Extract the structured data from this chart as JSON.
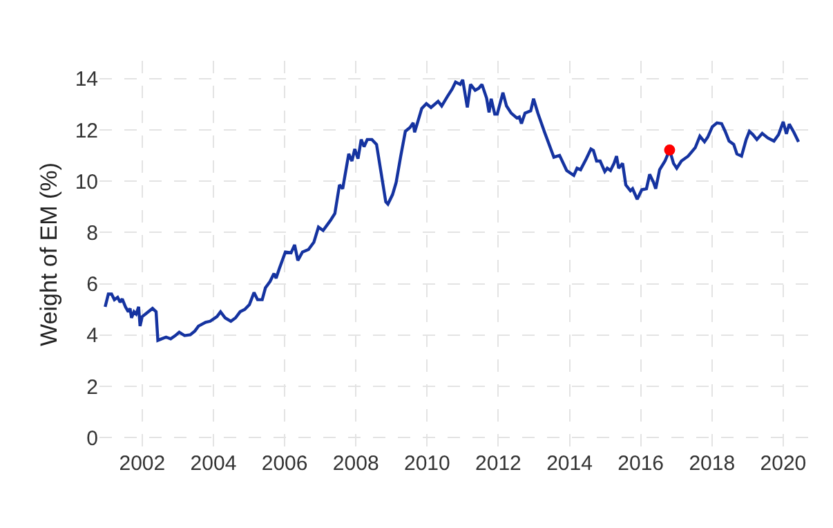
{
  "chart_data": {
    "type": "line",
    "ylabel": "Weight of EM (%)",
    "xlim": [
      2000.8,
      2020.7
    ],
    "xticks": [
      2002,
      2004,
      2006,
      2008,
      2010,
      2012,
      2014,
      2016,
      2018,
      2020
    ],
    "ylim": [
      -0.4,
      14.7
    ],
    "yticks": [
      0,
      2,
      4,
      6,
      8,
      10,
      12,
      14
    ],
    "grid": true,
    "series": [
      {
        "color": "#1533a0",
        "marker": "none",
        "line_style": "solid",
        "x": [
          2000.96,
          2001.05,
          2001.14,
          2001.22,
          2001.31,
          2001.38,
          2001.44,
          2001.53,
          2001.61,
          2001.66,
          2001.7,
          2001.77,
          2001.83,
          2001.9,
          2001.94,
          2002.0,
          2002.09,
          2002.29,
          2002.39,
          2002.44,
          2002.54,
          2002.67,
          2002.8,
          2002.93,
          2003.04,
          2003.19,
          2003.35,
          2003.48,
          2003.58,
          2003.78,
          2003.91,
          2004.1,
          2004.2,
          2004.33,
          2004.49,
          2004.62,
          2004.75,
          2004.88,
          2005.01,
          2005.14,
          2005.24,
          2005.37,
          2005.46,
          2005.59,
          2005.7,
          2005.76,
          2005.85,
          2006.02,
          2006.18,
          2006.28,
          2006.37,
          2006.5,
          2006.67,
          2006.82,
          2006.95,
          2007.08,
          2007.28,
          2007.41,
          2007.54,
          2007.63,
          2007.8,
          2007.89,
          2007.97,
          2008.06,
          2008.15,
          2008.23,
          2008.32,
          2008.45,
          2008.58,
          2008.71,
          2008.84,
          2008.9,
          2009.03,
          2009.13,
          2009.26,
          2009.39,
          2009.52,
          2009.61,
          2009.65,
          2009.78,
          2009.85,
          2009.98,
          2010.11,
          2010.31,
          2010.41,
          2010.57,
          2010.7,
          2010.8,
          2010.93,
          2011.0,
          2011.13,
          2011.22,
          2011.35,
          2011.45,
          2011.54,
          2011.67,
          2011.74,
          2011.8,
          2011.9,
          2011.97,
          2012.13,
          2012.23,
          2012.36,
          2012.52,
          2012.59,
          2012.65,
          2012.75,
          2012.91,
          2012.99,
          2013.11,
          2013.3,
          2013.56,
          2013.72,
          2013.92,
          2014.12,
          2014.21,
          2014.31,
          2014.47,
          2014.6,
          2014.67,
          2014.76,
          2014.86,
          2014.99,
          2015.06,
          2015.15,
          2015.25,
          2015.32,
          2015.38,
          2015.49,
          2015.58,
          2015.71,
          2015.77,
          2015.9,
          2016.03,
          2016.16,
          2016.25,
          2016.36,
          2016.42,
          2016.53,
          2016.68,
          2016.81,
          2016.92,
          2017.01,
          2017.14,
          2017.33,
          2017.53,
          2017.66,
          2017.79,
          2017.88,
          2018.01,
          2018.14,
          2018.27,
          2018.37,
          2018.48,
          2018.61,
          2018.7,
          2018.83,
          2018.96,
          2019.05,
          2019.15,
          2019.26,
          2019.41,
          2019.57,
          2019.74,
          2019.87,
          2020.0,
          2020.09,
          2020.17,
          2020.3,
          2020.43
        ],
        "values": [
          5.1,
          5.6,
          5.6,
          5.38,
          5.47,
          5.28,
          5.41,
          5.1,
          4.91,
          5.04,
          4.67,
          4.91,
          4.82,
          5.1,
          4.35,
          4.72,
          4.82,
          5.04,
          4.91,
          3.79,
          3.85,
          3.92,
          3.85,
          3.98,
          4.11,
          3.98,
          4.01,
          4.16,
          4.35,
          4.5,
          4.54,
          4.72,
          4.91,
          4.67,
          4.54,
          4.67,
          4.91,
          5.0,
          5.19,
          5.66,
          5.38,
          5.38,
          5.84,
          6.09,
          6.4,
          6.22,
          6.59,
          7.24,
          7.21,
          7.52,
          6.91,
          7.24,
          7.34,
          7.62,
          8.21,
          8.08,
          8.46,
          8.74,
          9.86,
          9.71,
          11.07,
          10.79,
          11.26,
          10.88,
          11.63,
          11.35,
          11.63,
          11.63,
          11.44,
          10.32,
          9.2,
          9.11,
          9.48,
          9.95,
          10.98,
          11.95,
          12.1,
          12.28,
          11.91,
          12.51,
          12.84,
          13.03,
          12.88,
          13.12,
          12.94,
          13.31,
          13.59,
          13.87,
          13.78,
          13.96,
          12.88,
          13.78,
          13.55,
          13.63,
          13.78,
          13.25,
          12.69,
          13.22,
          12.62,
          12.62,
          13.46,
          12.94,
          12.66,
          12.47,
          12.51,
          12.25,
          12.66,
          12.75,
          13.22,
          12.66,
          11.91,
          10.94,
          11.01,
          10.42,
          10.23,
          10.51,
          10.45,
          10.88,
          11.26,
          11.2,
          10.79,
          10.79,
          10.38,
          10.51,
          10.42,
          10.7,
          10.98,
          10.51,
          10.7,
          9.86,
          9.63,
          9.71,
          9.3,
          9.67,
          9.71,
          10.27,
          9.95,
          9.71,
          10.45,
          10.79,
          11.22,
          10.7,
          10.51,
          10.79,
          10.98,
          11.31,
          11.76,
          11.54,
          11.72,
          12.13,
          12.28,
          12.25,
          11.95,
          11.57,
          11.44,
          11.07,
          10.98,
          11.63,
          11.95,
          11.82,
          11.63,
          11.87,
          11.69,
          11.57,
          11.82,
          12.32,
          11.85,
          12.23,
          11.91,
          11.54
        ]
      },
      {
        "type": "scatter",
        "color": "#ff0000",
        "marker": "circle",
        "x": [
          2016.81
        ],
        "values": [
          11.22
        ]
      }
    ]
  }
}
